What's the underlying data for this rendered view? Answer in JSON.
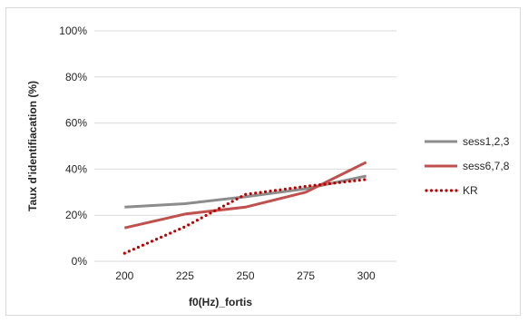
{
  "chart_data": {
    "type": "line",
    "xlabel": "f0(Hz)_fortis",
    "ylabel": "Taux d'identifiacation (%)",
    "categories": [
      "200",
      "225",
      "250",
      "275",
      "300"
    ],
    "ylim": [
      0,
      100
    ],
    "yticks": [
      "0%",
      "20%",
      "40%",
      "60%",
      "80%",
      "100%"
    ],
    "grid": true,
    "legend_position": "right",
    "series": [
      {
        "name": "sess1,2,3",
        "values": [
          23.5,
          25,
          28,
          31.5,
          37
        ],
        "color": "#8c8c8c",
        "style": "solid"
      },
      {
        "name": "sess6,7,8",
        "values": [
          14.5,
          20.5,
          23.5,
          30,
          43
        ],
        "color": "#c0504d",
        "style": "solid"
      },
      {
        "name": "KR",
        "values": [
          3.5,
          15,
          29,
          32.5,
          35.5
        ],
        "color": "#c00000",
        "style": "dotted"
      }
    ]
  }
}
